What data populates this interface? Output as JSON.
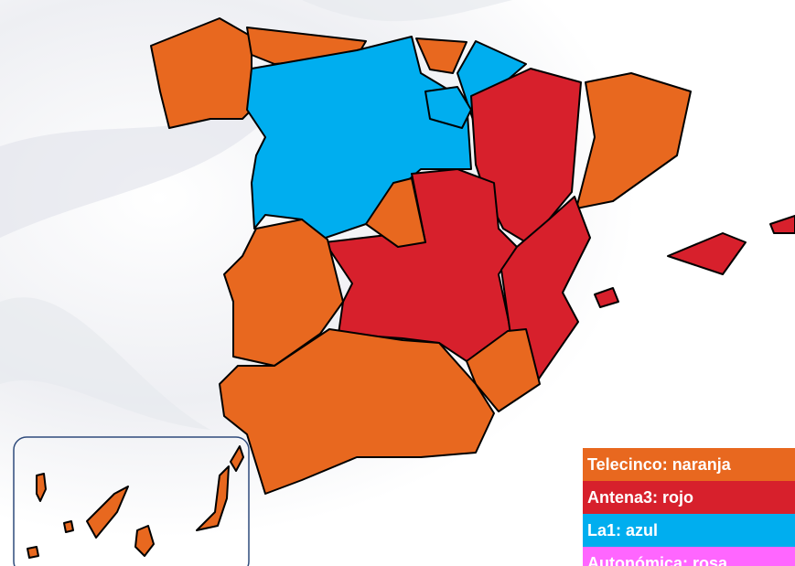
{
  "legend": [
    {
      "label": "Telecinco: naranja",
      "color": "#e8681f"
    },
    {
      "label": "Antena3: rojo",
      "color": "#d7202c"
    },
    {
      "label": "La1: azul",
      "color": "#00aeef"
    },
    {
      "label": "Autonómica: rosa",
      "color": "#ff66ff"
    }
  ]
}
